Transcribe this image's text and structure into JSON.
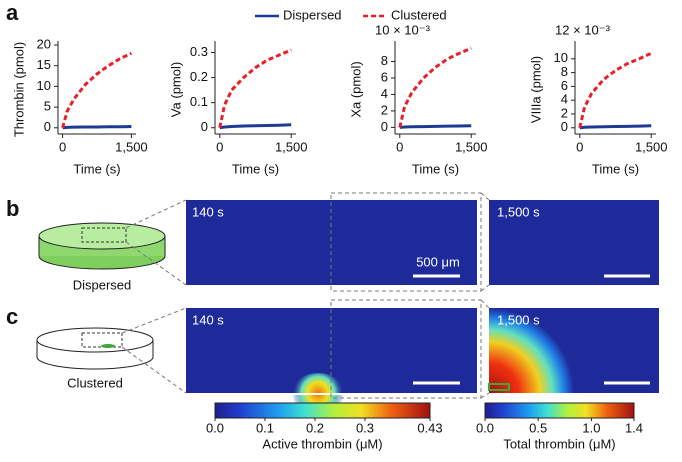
{
  "panel_labels": [
    "a",
    "b",
    "c"
  ],
  "chart_data": [
    {
      "type": "line",
      "ylabel": "Thrombin (pmol)",
      "xlabel": "Time (s)",
      "x": [
        0,
        100,
        250,
        500,
        750,
        1000,
        1250,
        1500
      ],
      "series": [
        {
          "name": "Dispersed",
          "color": "#1f3a93",
          "style": "solid",
          "values": [
            0,
            0.1,
            0.15,
            0.2,
            0.2,
            0.25,
            0.25,
            0.3
          ]
        },
        {
          "name": "Clustered",
          "color": "#e8202a",
          "style": "dashed",
          "values": [
            0,
            4,
            7,
            10.5,
            13,
            15,
            16.7,
            18
          ]
        }
      ],
      "xlim": [
        -100,
        1600
      ],
      "xticks": [
        0,
        {
          "value": 1500,
          "label": "1,500"
        }
      ],
      "ylim": [
        -1.5,
        20
      ],
      "yticks": [
        0,
        5,
        10,
        15,
        20
      ]
    },
    {
      "type": "line",
      "ylabel": "Va (pmol)",
      "xlabel": "Time (s)",
      "x": [
        0,
        100,
        250,
        500,
        750,
        1000,
        1250,
        1500
      ],
      "series": [
        {
          "name": "Dispersed",
          "color": "#1f3a93",
          "style": "solid",
          "values": [
            0,
            0.003,
            0.005,
            0.007,
            0.008,
            0.009,
            0.01,
            0.012
          ]
        },
        {
          "name": "Clustered",
          "color": "#e8202a",
          "style": "dashed",
          "values": [
            0,
            0.09,
            0.15,
            0.2,
            0.24,
            0.27,
            0.29,
            0.31
          ]
        }
      ],
      "xlim": [
        -100,
        1600
      ],
      "xticks": [
        0,
        {
          "value": 1500,
          "label": "1,500"
        }
      ],
      "ylim": [
        -0.025,
        0.33
      ],
      "yticks": [
        0,
        0.1,
        0.2,
        0.3
      ]
    },
    {
      "type": "line",
      "ylabel": "Xa (pmol)",
      "xlabel": "Time (s)",
      "offset_label": "10 × 10⁻³",
      "x": [
        0,
        100,
        250,
        500,
        750,
        1000,
        1250,
        1500
      ],
      "series": [
        {
          "name": "Dispersed",
          "color": "#1f3a93",
          "style": "solid",
          "values": [
            0,
            0.05,
            0.08,
            0.1,
            0.12,
            0.15,
            0.17,
            0.2
          ]
        },
        {
          "name": "Clustered",
          "color": "#e8202a",
          "style": "dashed",
          "values": [
            0,
            2.5,
            4.2,
            6,
            7.3,
            8.3,
            9,
            9.6
          ]
        }
      ],
      "xlim": [
        -100,
        1600
      ],
      "xticks": [
        0,
        {
          "value": 1500,
          "label": "1,500"
        }
      ],
      "ylim": [
        -0.8,
        10
      ],
      "yticks": [
        0,
        2,
        4,
        6,
        8
      ]
    },
    {
      "type": "line",
      "ylabel": "VIIIa (pmol)",
      "xlabel": "Time (s)",
      "offset_label": "12 × 10⁻³",
      "x": [
        0,
        100,
        250,
        500,
        750,
        1000,
        1250,
        1500
      ],
      "series": [
        {
          "name": "Dispersed",
          "color": "#1f3a93",
          "style": "solid",
          "values": [
            0,
            0.08,
            0.12,
            0.15,
            0.18,
            0.2,
            0.25,
            0.3
          ]
        },
        {
          "name": "Clustered",
          "color": "#e8202a",
          "style": "dashed",
          "values": [
            0,
            3,
            5,
            7,
            8.3,
            9.3,
            10,
            10.8
          ]
        }
      ],
      "xlim": [
        -100,
        1600
      ],
      "xticks": [
        0,
        {
          "value": 1500,
          "label": "1,500"
        }
      ],
      "ylim": [
        -0.9,
        12
      ],
      "yticks": [
        0,
        2,
        4,
        6,
        8,
        10
      ]
    },
    {
      "type": "colorbar",
      "xlabel": "Active thrombin (μM)",
      "xlim": [
        0,
        0.43
      ],
      "xticks": [
        {
          "value": 0,
          "label": "0.0"
        },
        0.1,
        0.2,
        0.3,
        0.43
      ]
    },
    {
      "type": "colorbar",
      "xlabel": "Total thrombin (μM)",
      "xlim": [
        0,
        1.4
      ],
      "xticks": [
        {
          "value": 0,
          "label": "0.0"
        },
        0.5,
        {
          "value": 1,
          "label": "1.0"
        },
        1.4
      ]
    }
  ],
  "rows": [
    {
      "condition": "Dispersed",
      "times": [
        "140 s",
        "1,500 s"
      ]
    },
    {
      "condition": "Clustered",
      "times": [
        "140 s",
        "1,500 s"
      ]
    }
  ],
  "scale_bar": "500 μm"
}
